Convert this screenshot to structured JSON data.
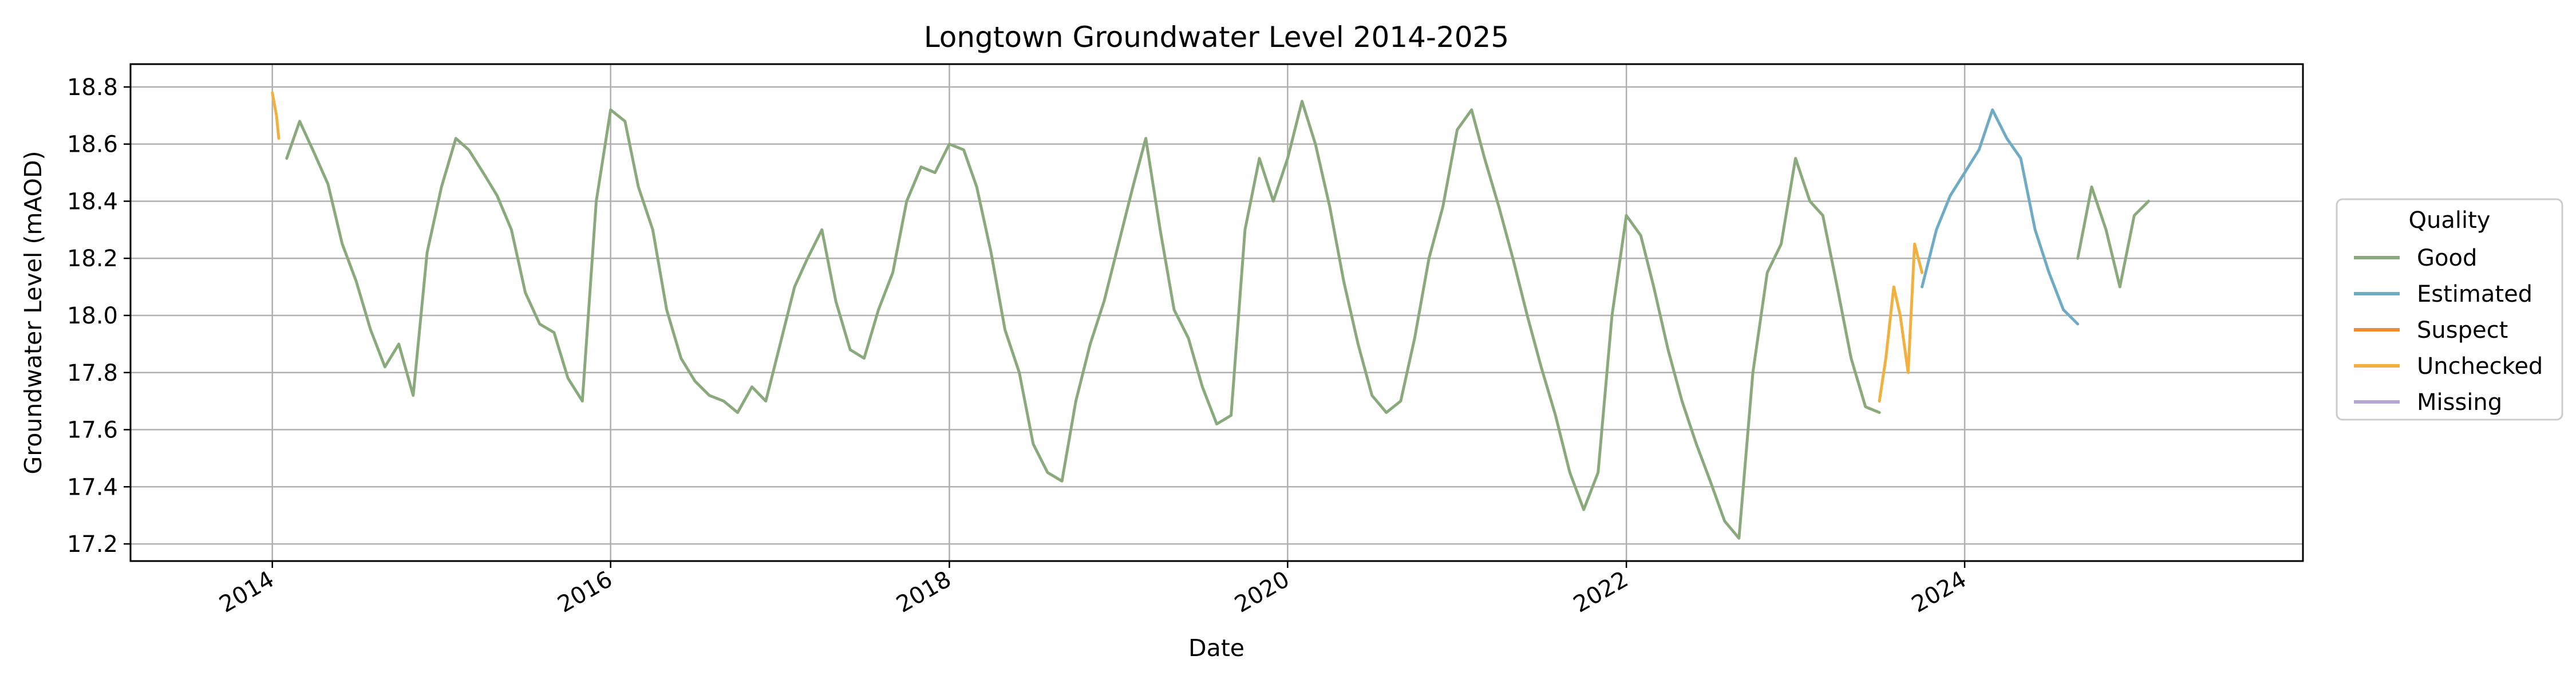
{
  "chart_data": {
    "type": "line",
    "title": "Longtown Groundwater Level 2014-2025",
    "xlabel": "Date",
    "ylabel": "Groundwater Level (mAOD)",
    "xlim": [
      "2013-03-01",
      "2025-12-31"
    ],
    "ylim": [
      17.14,
      18.88
    ],
    "x_ticks": [
      "2014",
      "2016",
      "2018",
      "2020",
      "2022",
      "2024"
    ],
    "y_ticks": [
      "17.2",
      "17.4",
      "17.6",
      "17.8",
      "18.0",
      "18.2",
      "18.4",
      "18.6",
      "18.8"
    ],
    "grid": true,
    "legend": {
      "title": "Quality",
      "placement": "outside-right",
      "entries": [
        "Good",
        "Estimated",
        "Suspect",
        "Unchecked",
        "Missing"
      ]
    },
    "series": [
      {
        "name": "Good",
        "color": "#8aa97c",
        "x": [
          "2014-02-01",
          "2014-03-01",
          "2014-04-01",
          "2014-05-01",
          "2014-06-01",
          "2014-07-01",
          "2014-08-01",
          "2014-09-01",
          "2014-10-01",
          "2014-11-01",
          "2014-12-01",
          "2015-01-01",
          "2015-02-01",
          "2015-03-01",
          "2015-04-01",
          "2015-05-01",
          "2015-06-01",
          "2015-07-01",
          "2015-08-01",
          "2015-09-01",
          "2015-10-01",
          "2015-11-01",
          "2015-12-01",
          "2016-01-01",
          "2016-02-01",
          "2016-03-01",
          "2016-04-01",
          "2016-05-01",
          "2016-06-01",
          "2016-07-01",
          "2016-08-01",
          "2016-09-01",
          "2016-10-01",
          "2016-11-01",
          "2016-12-01",
          "2017-01-01",
          "2017-02-01",
          "2017-03-01",
          "2017-04-01",
          "2017-05-01",
          "2017-06-01",
          "2017-07-01",
          "2017-08-01",
          "2017-09-01",
          "2017-10-01",
          "2017-11-01",
          "2017-12-01",
          "2018-01-01",
          "2018-02-01",
          "2018-03-01",
          "2018-04-01",
          "2018-05-01",
          "2018-06-01",
          "2018-07-01",
          "2018-08-01",
          "2018-09-01",
          "2018-10-01",
          "2018-11-01",
          "2018-12-01",
          "2019-01-01",
          "2019-02-01",
          "2019-03-01",
          "2019-04-01",
          "2019-05-01",
          "2019-06-01",
          "2019-07-01",
          "2019-08-01",
          "2019-09-01",
          "2019-10-01",
          "2019-11-01",
          "2019-12-01",
          "2020-01-01",
          "2020-02-01",
          "2020-03-01",
          "2020-04-01",
          "2020-05-01",
          "2020-06-01",
          "2020-07-01",
          "2020-08-01",
          "2020-09-01",
          "2020-10-01",
          "2020-11-01",
          "2020-12-01",
          "2021-01-01",
          "2021-02-01",
          "2021-03-01",
          "2021-04-01",
          "2021-05-01",
          "2021-06-01",
          "2021-07-01",
          "2021-08-01",
          "2021-09-01",
          "2021-10-01",
          "2021-11-01",
          "2021-12-01",
          "2022-01-01",
          "2022-02-01",
          "2022-03-01",
          "2022-04-01",
          "2022-05-01",
          "2022-06-01",
          "2022-07-01",
          "2022-08-01",
          "2022-09-01",
          "2022-10-01",
          "2022-11-01",
          "2022-12-01",
          "2023-01-01",
          "2023-02-01",
          "2023-03-01",
          "2023-04-01",
          "2023-05-01",
          "2023-06-01",
          "2023-07-01"
        ],
        "y": [
          18.55,
          18.68,
          18.57,
          18.46,
          18.25,
          18.12,
          17.95,
          17.82,
          17.9,
          17.72,
          18.22,
          18.45,
          18.62,
          18.58,
          18.5,
          18.42,
          18.3,
          18.08,
          17.97,
          17.94,
          17.78,
          17.7,
          18.4,
          18.72,
          18.68,
          18.45,
          18.3,
          18.02,
          17.85,
          17.77,
          17.72,
          17.7,
          17.66,
          17.75,
          17.7,
          17.9,
          18.1,
          18.2,
          18.3,
          18.05,
          17.88,
          17.85,
          18.02,
          18.15,
          18.4,
          18.52,
          18.5,
          18.6,
          18.58,
          18.45,
          18.22,
          17.95,
          17.8,
          17.55,
          17.45,
          17.42,
          17.7,
          17.9,
          18.05,
          18.25,
          18.45,
          18.62,
          18.3,
          18.02,
          17.92,
          17.75,
          17.62,
          17.65,
          18.3,
          18.55,
          18.4,
          18.55,
          18.75,
          18.6,
          18.38,
          18.12,
          17.9,
          17.72,
          17.66,
          17.7,
          17.92,
          18.2,
          18.38,
          18.65,
          18.72,
          18.55,
          18.38,
          18.2,
          18.0,
          17.82,
          17.65,
          17.45,
          17.32,
          17.45,
          18.0,
          18.35,
          18.28,
          18.1,
          17.88,
          17.7,
          17.55,
          17.42,
          17.28,
          17.22,
          17.8,
          18.15,
          18.25,
          18.55,
          18.4,
          18.35,
          18.1,
          17.85,
          17.68,
          17.66
        ]
      },
      {
        "name": "Estimated",
        "color": "#6fabc3",
        "x": [
          "2023-10-01",
          "2023-11-01",
          "2023-12-01",
          "2024-01-01",
          "2024-02-01",
          "2024-03-01",
          "2024-04-01",
          "2024-05-01",
          "2024-06-01",
          "2024-07-01",
          "2024-08-01",
          "2024-09-01"
        ],
        "y": [
          18.1,
          18.3,
          18.42,
          18.5,
          18.58,
          18.72,
          18.62,
          18.55,
          18.3,
          18.15,
          18.02,
          17.97
        ]
      },
      {
        "name": "Good",
        "color": "#8aa97c",
        "x": [
          "2024-09-01",
          "2024-10-01",
          "2024-11-01",
          "2024-12-01",
          "2025-01-01",
          "2025-02-01"
        ],
        "y": [
          18.2,
          18.45,
          18.3,
          18.1,
          18.35,
          18.4
        ]
      },
      {
        "name": "Unchecked",
        "color": "#f2b040",
        "x": [
          "2014-01-01",
          "2014-01-10",
          "2014-01-15"
        ],
        "y": [
          18.78,
          18.7,
          18.62
        ]
      },
      {
        "name": "Unchecked",
        "color": "#f2b040",
        "x": [
          "2023-07-01",
          "2023-07-15",
          "2023-08-01",
          "2023-08-15",
          "2023-09-01",
          "2023-09-15",
          "2023-10-01"
        ],
        "y": [
          17.7,
          17.85,
          18.1,
          18.0,
          17.8,
          18.25,
          18.15
        ]
      }
    ],
    "legend_colors": {
      "Good": "#8aa97c",
      "Estimated": "#6fabc3",
      "Suspect": "#f08a2e",
      "Unchecked": "#f2b040",
      "Missing": "#b4a7d6"
    }
  }
}
